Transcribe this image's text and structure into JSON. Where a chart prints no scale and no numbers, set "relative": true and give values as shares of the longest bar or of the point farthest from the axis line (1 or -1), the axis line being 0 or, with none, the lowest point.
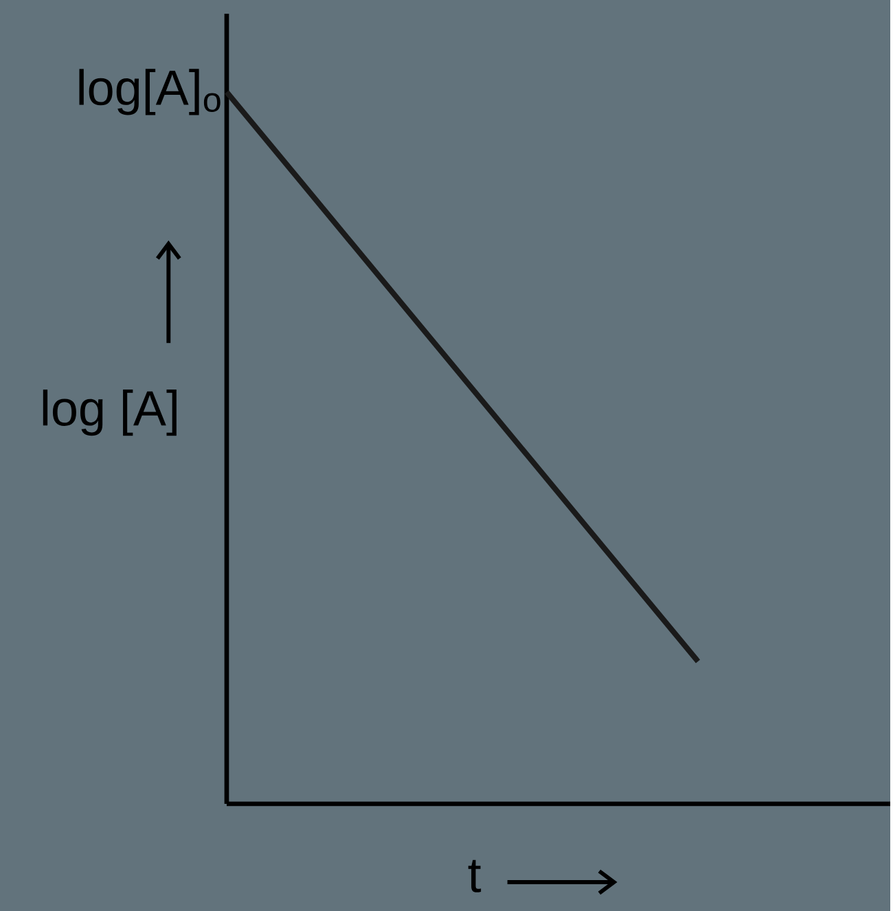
{
  "chart_data": {
    "type": "line",
    "relative": true,
    "categories": [
      null,
      null
    ],
    "series": [
      {
        "color": "#1a1a1a",
        "values": [
          1,
          0.2
        ]
      }
    ],
    "xlabel": "t",
    "ylabel": "log [A]",
    "annotations": [
      "log[A]$_{o}$"
    ],
    "marker": "none",
    "line_style": "solid"
  }
}
